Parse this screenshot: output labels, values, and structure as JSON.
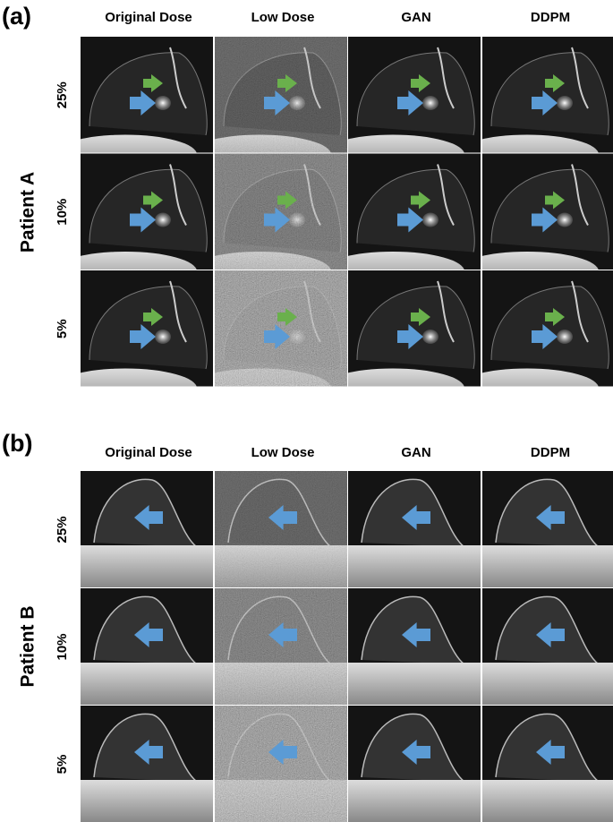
{
  "panels": [
    {
      "label": "(a)",
      "patient": "Patient A",
      "columns": [
        "Original Dose",
        "Low Dose",
        "GAN",
        "DDPM"
      ],
      "rows": [
        "25%",
        "10%",
        "5%"
      ]
    },
    {
      "label": "(b)",
      "patient": "Patient B",
      "columns": [
        "Original Dose",
        "Low Dose",
        "GAN",
        "DDPM"
      ],
      "rows": [
        "25%",
        "10%",
        "5%"
      ]
    }
  ]
}
